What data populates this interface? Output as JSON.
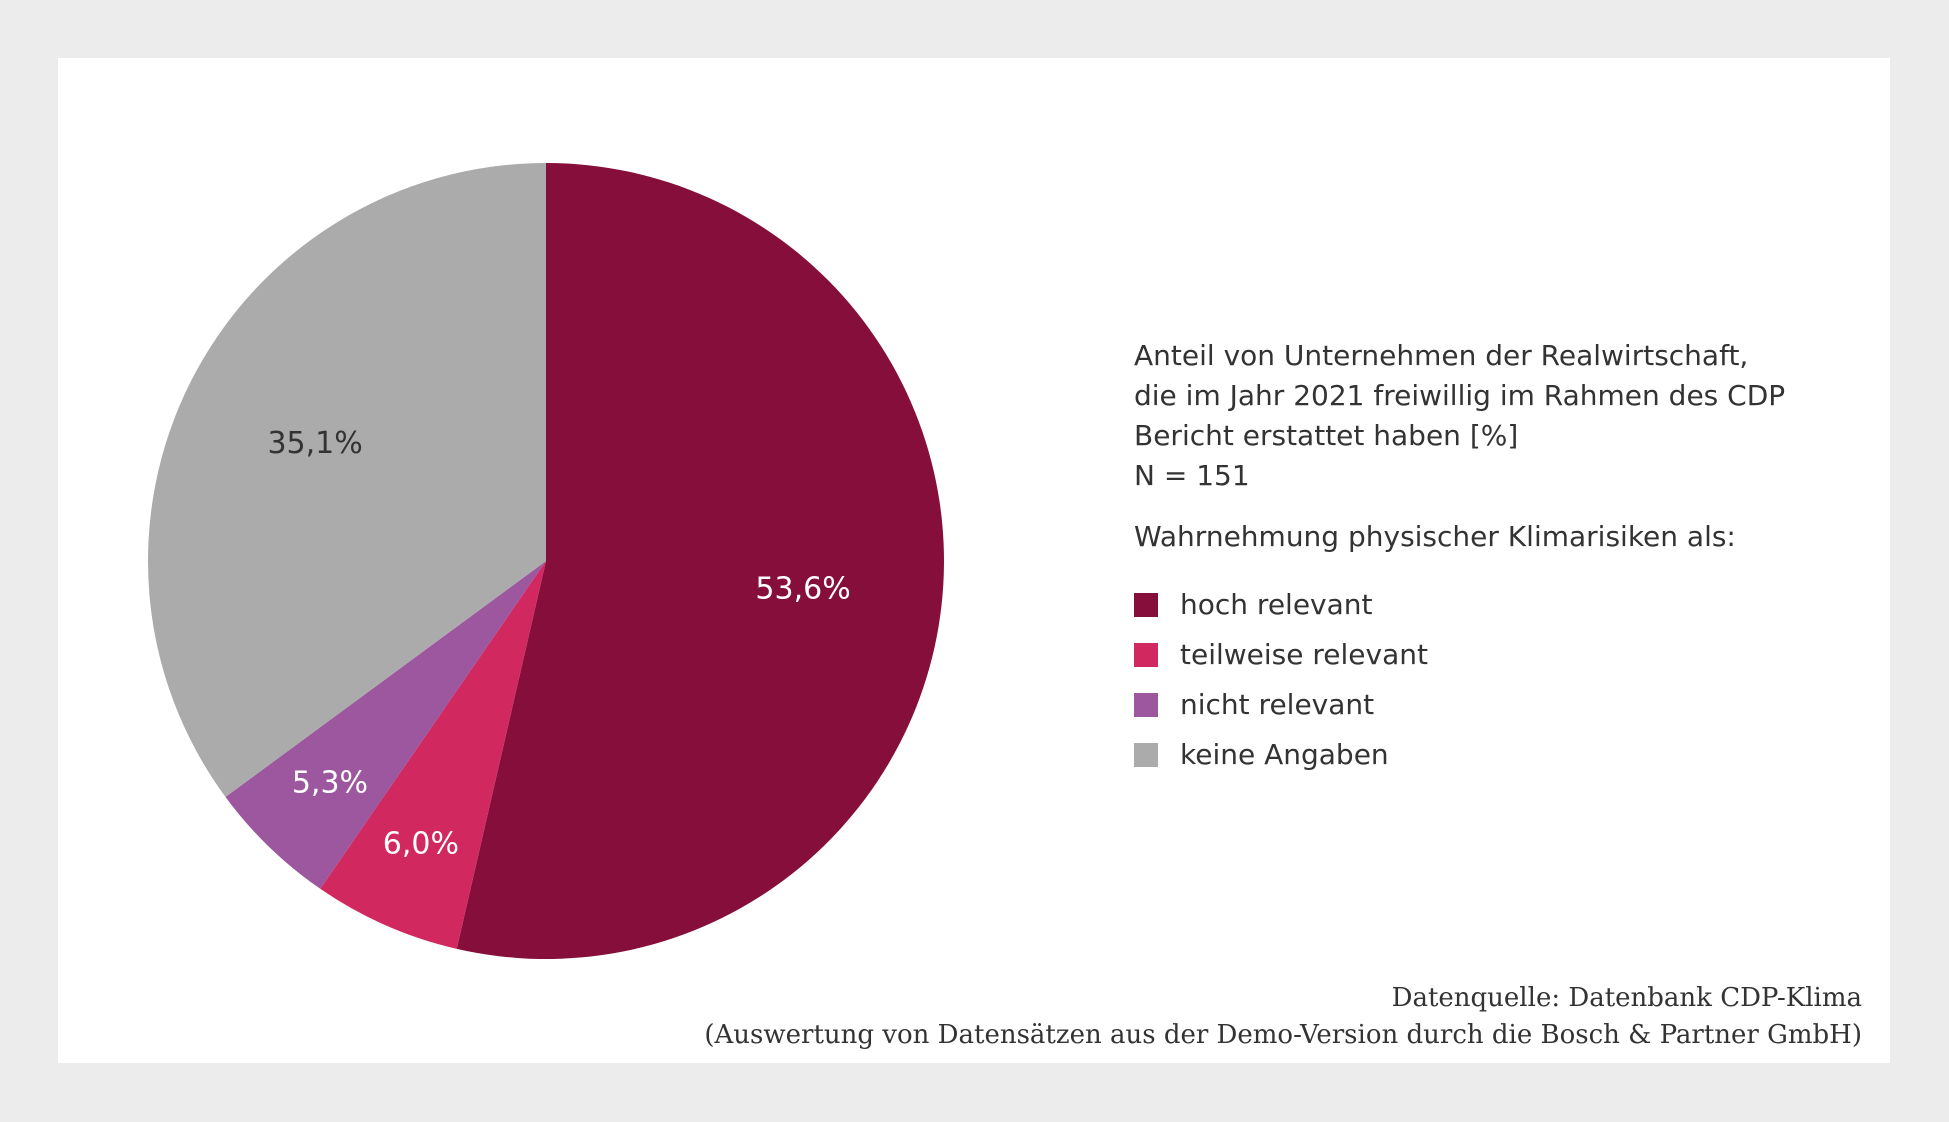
{
  "chart_data": {
    "type": "pie",
    "title_lines": [
      "Anteil von Unternehmen der Realwirtschaft,",
      "die im Jahr 2021 freiwillig im Rahmen des CDP",
      "Bericht erstattet haben [%]",
      "N = 151"
    ],
    "subtitle": "Wahrnehmung physischer Klimarisiken als:",
    "slices": [
      {
        "name": "hoch relevant",
        "value": 53.6,
        "label": "53,6%",
        "color": "#850e3a",
        "label_color": "#ffffff"
      },
      {
        "name": "teilweise relevant",
        "value": 6.0,
        "label": "6,0%",
        "color": "#d12860",
        "label_color": "#ffffff"
      },
      {
        "name": "nicht relevant",
        "value": 5.3,
        "label": "5,3%",
        "color": "#9c579f",
        "label_color": "#ffffff"
      },
      {
        "name": "keine Angaben",
        "value": 35.1,
        "label": "35,1%",
        "color": "#ababab",
        "label_color": "#333333"
      }
    ],
    "start_angle_deg": 0,
    "direction": "clockwise",
    "legend_position": "right"
  },
  "source": {
    "line1": "Datenquelle: Datenbank CDP-Klima",
    "line2": "(Auswertung von Datensätzen aus der Demo-Version durch die Bosch & Partner GmbH)"
  }
}
